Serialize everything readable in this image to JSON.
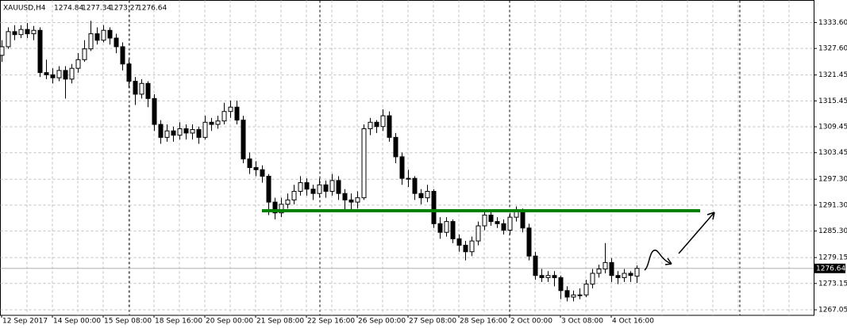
{
  "chart_data": {
    "type": "candlestick",
    "title": "XAUUSD,H4",
    "categories": [
      "12 Sep 2017",
      null,
      null,
      null,
      null,
      null,
      null,
      null,
      "14 Sep 00:00",
      null,
      null,
      null,
      null,
      null,
      null,
      null,
      "15 Sep 08:00",
      null,
      null,
      null,
      null,
      null,
      null,
      null,
      "18 Sep 16:00",
      null,
      null,
      null,
      null,
      null,
      null,
      null,
      "20 Sep 00:00",
      null,
      null,
      null,
      null,
      null,
      null,
      null,
      "21 Sep 08:00",
      null,
      null,
      null,
      null,
      null,
      null,
      null,
      "22 Sep 16:00",
      null,
      null,
      null,
      null,
      null,
      null,
      null,
      "26 Sep 00:00",
      null,
      null,
      null,
      null,
      null,
      null,
      null,
      "27 Sep 08:00",
      null,
      null,
      null,
      null,
      null,
      null,
      null,
      "28 Sep 16:00",
      null,
      null,
      null,
      null,
      null,
      null,
      null,
      "2 Oct 00:00",
      null,
      null,
      null,
      null,
      null,
      null,
      null,
      "3 Oct 08:00",
      null,
      null,
      null,
      null,
      null,
      null,
      null,
      "4 Oct 16:00",
      null,
      null,
      null,
      null
    ],
    "ohlc": [
      [
        1326.0,
        1329.5,
        1324.5,
        1328.0
      ],
      [
        1328.0,
        1332.5,
        1327.5,
        1331.5
      ],
      [
        1331.5,
        1333.0,
        1329.5,
        1330.8
      ],
      [
        1330.8,
        1333.0,
        1330.0,
        1332.0
      ],
      [
        1332.0,
        1333.5,
        1330.0,
        1331.0
      ],
      [
        1331.0,
        1332.8,
        1329.5,
        1331.8
      ],
      [
        1331.8,
        1332.5,
        1321.0,
        1322.0
      ],
      [
        1322.0,
        1325.0,
        1320.5,
        1321.5
      ],
      [
        1321.5,
        1323.0,
        1319.5,
        1320.8
      ],
      [
        1320.8,
        1323.5,
        1320.0,
        1322.5
      ],
      [
        1322.5,
        1323.5,
        1316.0,
        1320.5
      ],
      [
        1320.5,
        1324.0,
        1319.5,
        1323.0
      ],
      [
        1323.0,
        1326.5,
        1322.0,
        1325.0
      ],
      [
        1325.0,
        1329.5,
        1324.5,
        1327.5
      ],
      [
        1327.5,
        1334.0,
        1327.0,
        1331.0
      ],
      [
        1331.0,
        1332.5,
        1328.5,
        1329.5
      ],
      [
        1329.5,
        1333.0,
        1329.0,
        1331.8
      ],
      [
        1331.8,
        1332.5,
        1328.5,
        1330.0
      ],
      [
        1330.0,
        1331.0,
        1326.5,
        1328.0
      ],
      [
        1328.0,
        1329.0,
        1322.5,
        1324.0
      ],
      [
        1324.0,
        1325.0,
        1318.5,
        1320.0
      ],
      [
        1320.0,
        1321.0,
        1314.5,
        1317.0
      ],
      [
        1317.0,
        1320.5,
        1316.0,
        1319.5
      ],
      [
        1319.5,
        1320.0,
        1314.0,
        1316.0
      ],
      [
        1316.0,
        1317.0,
        1308.5,
        1310.0
      ],
      [
        1310.0,
        1311.0,
        1305.5,
        1307.0
      ],
      [
        1307.0,
        1310.0,
        1306.0,
        1308.5
      ],
      [
        1308.5,
        1309.5,
        1306.0,
        1307.5
      ],
      [
        1307.5,
        1310.5,
        1306.5,
        1309.0
      ],
      [
        1309.0,
        1310.0,
        1306.5,
        1308.0
      ],
      [
        1308.0,
        1310.0,
        1306.5,
        1308.8
      ],
      [
        1308.8,
        1309.5,
        1305.5,
        1307.0
      ],
      [
        1307.0,
        1312.0,
        1306.5,
        1310.5
      ],
      [
        1310.5,
        1311.5,
        1308.5,
        1310.0
      ],
      [
        1310.0,
        1312.0,
        1309.0,
        1310.8
      ],
      [
        1310.8,
        1315.0,
        1310.0,
        1313.0
      ],
      [
        1313.0,
        1315.5,
        1311.5,
        1314.0
      ],
      [
        1314.0,
        1315.5,
        1310.0,
        1311.0
      ],
      [
        1311.0,
        1312.0,
        1301.0,
        1302.0
      ],
      [
        1302.0,
        1303.5,
        1298.5,
        1300.0
      ],
      [
        1300.0,
        1301.5,
        1298.0,
        1299.5
      ],
      [
        1299.5,
        1300.5,
        1296.5,
        1298.0
      ],
      [
        1298.0,
        1298.5,
        1289.0,
        1292.0
      ],
      [
        1292.0,
        1293.0,
        1288.0,
        1289.5
      ],
      [
        1289.5,
        1293.0,
        1288.5,
        1291.5
      ],
      [
        1291.5,
        1294.0,
        1290.5,
        1292.5
      ],
      [
        1292.5,
        1296.0,
        1291.5,
        1294.5
      ],
      [
        1294.5,
        1298.0,
        1293.5,
        1296.5
      ],
      [
        1296.5,
        1297.5,
        1293.5,
        1295.0
      ],
      [
        1295.0,
        1296.0,
        1292.5,
        1294.0
      ],
      [
        1294.0,
        1297.5,
        1293.0,
        1296.0
      ],
      [
        1296.0,
        1297.0,
        1293.0,
        1294.5
      ],
      [
        1294.5,
        1298.5,
        1293.5,
        1297.0
      ],
      [
        1297.0,
        1298.0,
        1292.5,
        1294.0
      ],
      [
        1294.0,
        1295.0,
        1290.0,
        1292.5
      ],
      [
        1292.5,
        1294.0,
        1290.0,
        1292.0
      ],
      [
        1292.0,
        1294.5,
        1290.5,
        1293.0
      ],
      [
        1293.0,
        1310.0,
        1292.5,
        1309.0
      ],
      [
        1309.0,
        1311.5,
        1307.5,
        1310.5
      ],
      [
        1310.5,
        1311.0,
        1308.0,
        1309.5
      ],
      [
        1309.5,
        1313.5,
        1308.5,
        1312.0
      ],
      [
        1312.0,
        1313.0,
        1306.0,
        1307.0
      ],
      [
        1307.0,
        1308.0,
        1301.0,
        1302.5
      ],
      [
        1302.5,
        1303.5,
        1296.0,
        1297.5
      ],
      [
        1297.5,
        1299.5,
        1295.5,
        1297.5
      ],
      [
        1297.5,
        1298.0,
        1292.5,
        1294.0
      ],
      [
        1294.0,
        1295.0,
        1291.5,
        1293.0
      ],
      [
        1293.0,
        1296.0,
        1292.0,
        1294.5
      ],
      [
        1294.5,
        1295.0,
        1286.0,
        1287.0
      ],
      [
        1287.0,
        1288.5,
        1283.5,
        1285.0
      ],
      [
        1285.0,
        1288.5,
        1284.0,
        1287.5
      ],
      [
        1287.5,
        1288.0,
        1282.5,
        1283.5
      ],
      [
        1283.5,
        1284.5,
        1280.5,
        1282.0
      ],
      [
        1282.0,
        1283.0,
        1278.5,
        1280.5
      ],
      [
        1280.5,
        1284.0,
        1279.5,
        1283.0
      ],
      [
        1283.0,
        1287.5,
        1282.0,
        1286.5
      ],
      [
        1286.5,
        1290.0,
        1285.5,
        1289.0
      ],
      [
        1289.0,
        1290.0,
        1286.5,
        1287.5
      ],
      [
        1287.5,
        1288.5,
        1286.0,
        1287.0
      ],
      [
        1287.0,
        1288.0,
        1284.5,
        1285.5
      ],
      [
        1285.5,
        1289.5,
        1284.5,
        1288.5
      ],
      [
        1288.5,
        1291.0,
        1287.5,
        1290.0
      ],
      [
        1290.0,
        1290.5,
        1285.0,
        1286.0
      ],
      [
        1286.0,
        1287.0,
        1278.5,
        1279.5
      ],
      [
        1279.5,
        1280.5,
        1274.0,
        1275.0
      ],
      [
        1275.0,
        1276.5,
        1273.5,
        1274.5
      ],
      [
        1274.5,
        1276.0,
        1273.5,
        1275.0
      ],
      [
        1275.0,
        1276.0,
        1272.5,
        1274.5
      ],
      [
        1274.5,
        1275.0,
        1269.5,
        1271.5
      ],
      [
        1271.5,
        1272.5,
        1269.0,
        1270.0
      ],
      [
        1270.0,
        1271.5,
        1269.0,
        1270.5
      ],
      [
        1270.5,
        1272.0,
        1269.5,
        1270.5
      ],
      [
        1270.5,
        1274.0,
        1270.0,
        1273.0
      ],
      [
        1273.0,
        1276.5,
        1272.0,
        1275.5
      ],
      [
        1275.5,
        1277.5,
        1274.5,
        1276.5
      ],
      [
        1276.5,
        1282.5,
        1275.5,
        1278.0
      ],
      [
        1278.0,
        1279.0,
        1273.5,
        1275.0
      ],
      [
        1275.0,
        1276.0,
        1273.0,
        1274.5
      ],
      [
        1274.5,
        1276.5,
        1273.5,
        1275.5
      ],
      [
        1275.5,
        1276.0,
        1273.5,
        1275.0
      ],
      [
        1274.84,
        1277.34,
        1273.27,
        1276.64
      ]
    ],
    "level": 1290.0,
    "level_color": "#008000",
    "ylim": [
      1265.77,
      1338.73
    ],
    "yticks": [
      {
        "value": 1333.6,
        "label": "1333.60"
      },
      {
        "value": 1327.6,
        "label": "1327.60"
      },
      1321.45,
      1315.45,
      1309.45,
      1303.45,
      {
        "value": 1297.3,
        "label": "1297.30"
      },
      {
        "value": 1291.3,
        "label": "1291.30"
      },
      {
        "value": 1285.3,
        "label": "1285.30"
      },
      1279.15,
      1273.15,
      1267.05
    ],
    "grid": true
  }
}
